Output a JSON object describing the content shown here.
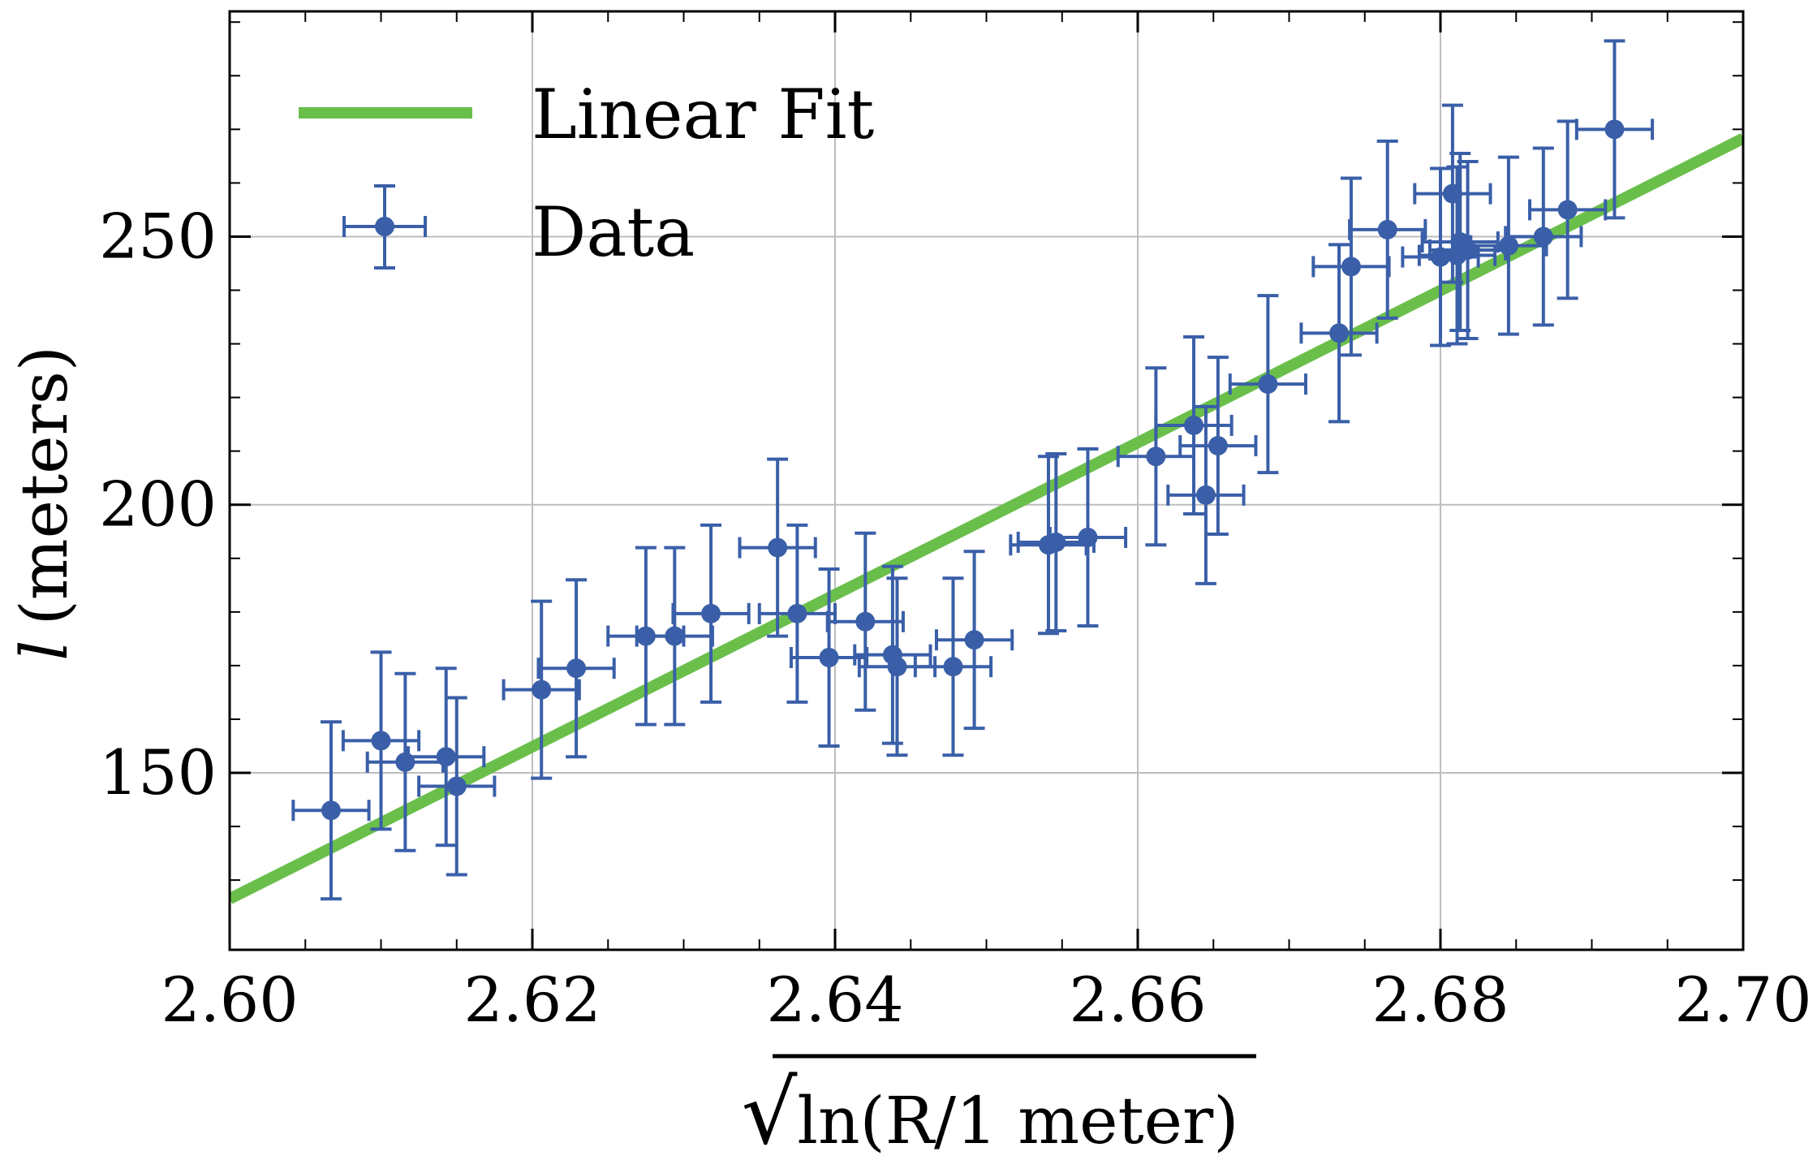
{
  "chart_data": {
    "type": "scatter",
    "title": "",
    "xlabel_radical": "√",
    "xlabel": "ln(R/1 meter)",
    "ylabel_symbol": "l",
    "ylabel": "(meters)",
    "xlim": [
      2.6,
      2.7
    ],
    "ylim": [
      117,
      292
    ],
    "xticks": [
      2.6,
      2.62,
      2.64,
      2.66,
      2.68,
      2.7
    ],
    "xtick_labels": [
      "2.60",
      "2.62",
      "2.64",
      "2.66",
      "2.68",
      "2.70"
    ],
    "yticks": [
      150,
      200,
      250
    ],
    "ytick_labels": [
      "150",
      "200",
      "250"
    ],
    "grid": true,
    "legend_position": "top-left",
    "colors": {
      "data": "#3a5fa8",
      "fit": "#6abf4b",
      "grid": "#bdbdbd",
      "axis": "#000000"
    },
    "series": [
      {
        "name": "Linear Fit",
        "kind": "line",
        "x": [
          2.6,
          2.7
        ],
        "y": [
          126.5,
          268.3
        ]
      },
      {
        "name": "Data",
        "kind": "errorbar",
        "points": [
          {
            "x": 2.6067,
            "y": 143.0,
            "xerr": 0.0025,
            "yerr": 16.5
          },
          {
            "x": 2.61,
            "y": 156.0,
            "xerr": 0.0025,
            "yerr": 16.5
          },
          {
            "x": 2.6116,
            "y": 152.0,
            "xerr": 0.0025,
            "yerr": 16.5
          },
          {
            "x": 2.6143,
            "y": 153.0,
            "xerr": 0.0025,
            "yerr": 16.5
          },
          {
            "x": 2.615,
            "y": 147.5,
            "xerr": 0.0025,
            "yerr": 16.5
          },
          {
            "x": 2.6206,
            "y": 165.5,
            "xerr": 0.0025,
            "yerr": 16.5
          },
          {
            "x": 2.6229,
            "y": 169.5,
            "xerr": 0.0025,
            "yerr": 16.5
          },
          {
            "x": 2.6275,
            "y": 175.5,
            "xerr": 0.0025,
            "yerr": 16.5
          },
          {
            "x": 2.6294,
            "y": 175.5,
            "xerr": 0.0025,
            "yerr": 16.5
          },
          {
            "x": 2.6318,
            "y": 179.7,
            "xerr": 0.0025,
            "yerr": 16.5
          },
          {
            "x": 2.6362,
            "y": 192.0,
            "xerr": 0.0025,
            "yerr": 16.5
          },
          {
            "x": 2.6375,
            "y": 179.7,
            "xerr": 0.0025,
            "yerr": 16.5
          },
          {
            "x": 2.6396,
            "y": 171.5,
            "xerr": 0.0025,
            "yerr": 16.5
          },
          {
            "x": 2.642,
            "y": 178.2,
            "xerr": 0.0025,
            "yerr": 16.5
          },
          {
            "x": 2.6438,
            "y": 172.0,
            "xerr": 0.0025,
            "yerr": 16.5
          },
          {
            "x": 2.6441,
            "y": 169.8,
            "xerr": 0.0025,
            "yerr": 16.5
          },
          {
            "x": 2.6478,
            "y": 169.8,
            "xerr": 0.0025,
            "yerr": 16.5
          },
          {
            "x": 2.6492,
            "y": 174.8,
            "xerr": 0.0025,
            "yerr": 16.5
          },
          {
            "x": 2.6541,
            "y": 192.5,
            "xerr": 0.0025,
            "yerr": 16.5
          },
          {
            "x": 2.6546,
            "y": 193.0,
            "xerr": 0.0025,
            "yerr": 16.5
          },
          {
            "x": 2.6567,
            "y": 193.9,
            "xerr": 0.0025,
            "yerr": 16.5
          },
          {
            "x": 2.6612,
            "y": 209.0,
            "xerr": 0.0025,
            "yerr": 16.5
          },
          {
            "x": 2.6637,
            "y": 214.8,
            "xerr": 0.0025,
            "yerr": 16.5
          },
          {
            "x": 2.6645,
            "y": 201.8,
            "xerr": 0.0025,
            "yerr": 16.5
          },
          {
            "x": 2.6653,
            "y": 211.0,
            "xerr": 0.0025,
            "yerr": 16.5
          },
          {
            "x": 2.6686,
            "y": 222.5,
            "xerr": 0.0025,
            "yerr": 16.5
          },
          {
            "x": 2.6733,
            "y": 232.0,
            "xerr": 0.0025,
            "yerr": 16.5
          },
          {
            "x": 2.6741,
            "y": 244.4,
            "xerr": 0.0025,
            "yerr": 16.5
          },
          {
            "x": 2.6765,
            "y": 251.3,
            "xerr": 0.0025,
            "yerr": 16.5
          },
          {
            "x": 2.68,
            "y": 246.2,
            "xerr": 0.0025,
            "yerr": 16.5
          },
          {
            "x": 2.6808,
            "y": 258.0,
            "xerr": 0.0025,
            "yerr": 16.5
          },
          {
            "x": 2.6811,
            "y": 246.5,
            "xerr": 0.0025,
            "yerr": 16.5
          },
          {
            "x": 2.6813,
            "y": 249.0,
            "xerr": 0.0025,
            "yerr": 16.5
          },
          {
            "x": 2.6818,
            "y": 247.5,
            "xerr": 0.0025,
            "yerr": 16.5
          },
          {
            "x": 2.6845,
            "y": 248.3,
            "xerr": 0.0025,
            "yerr": 16.5
          },
          {
            "x": 2.6868,
            "y": 250.0,
            "xerr": 0.0025,
            "yerr": 16.5
          },
          {
            "x": 2.6884,
            "y": 255.0,
            "xerr": 0.0025,
            "yerr": 16.5
          },
          {
            "x": 2.6915,
            "y": 270.0,
            "xerr": 0.0025,
            "yerr": 16.5
          }
        ]
      }
    ]
  }
}
